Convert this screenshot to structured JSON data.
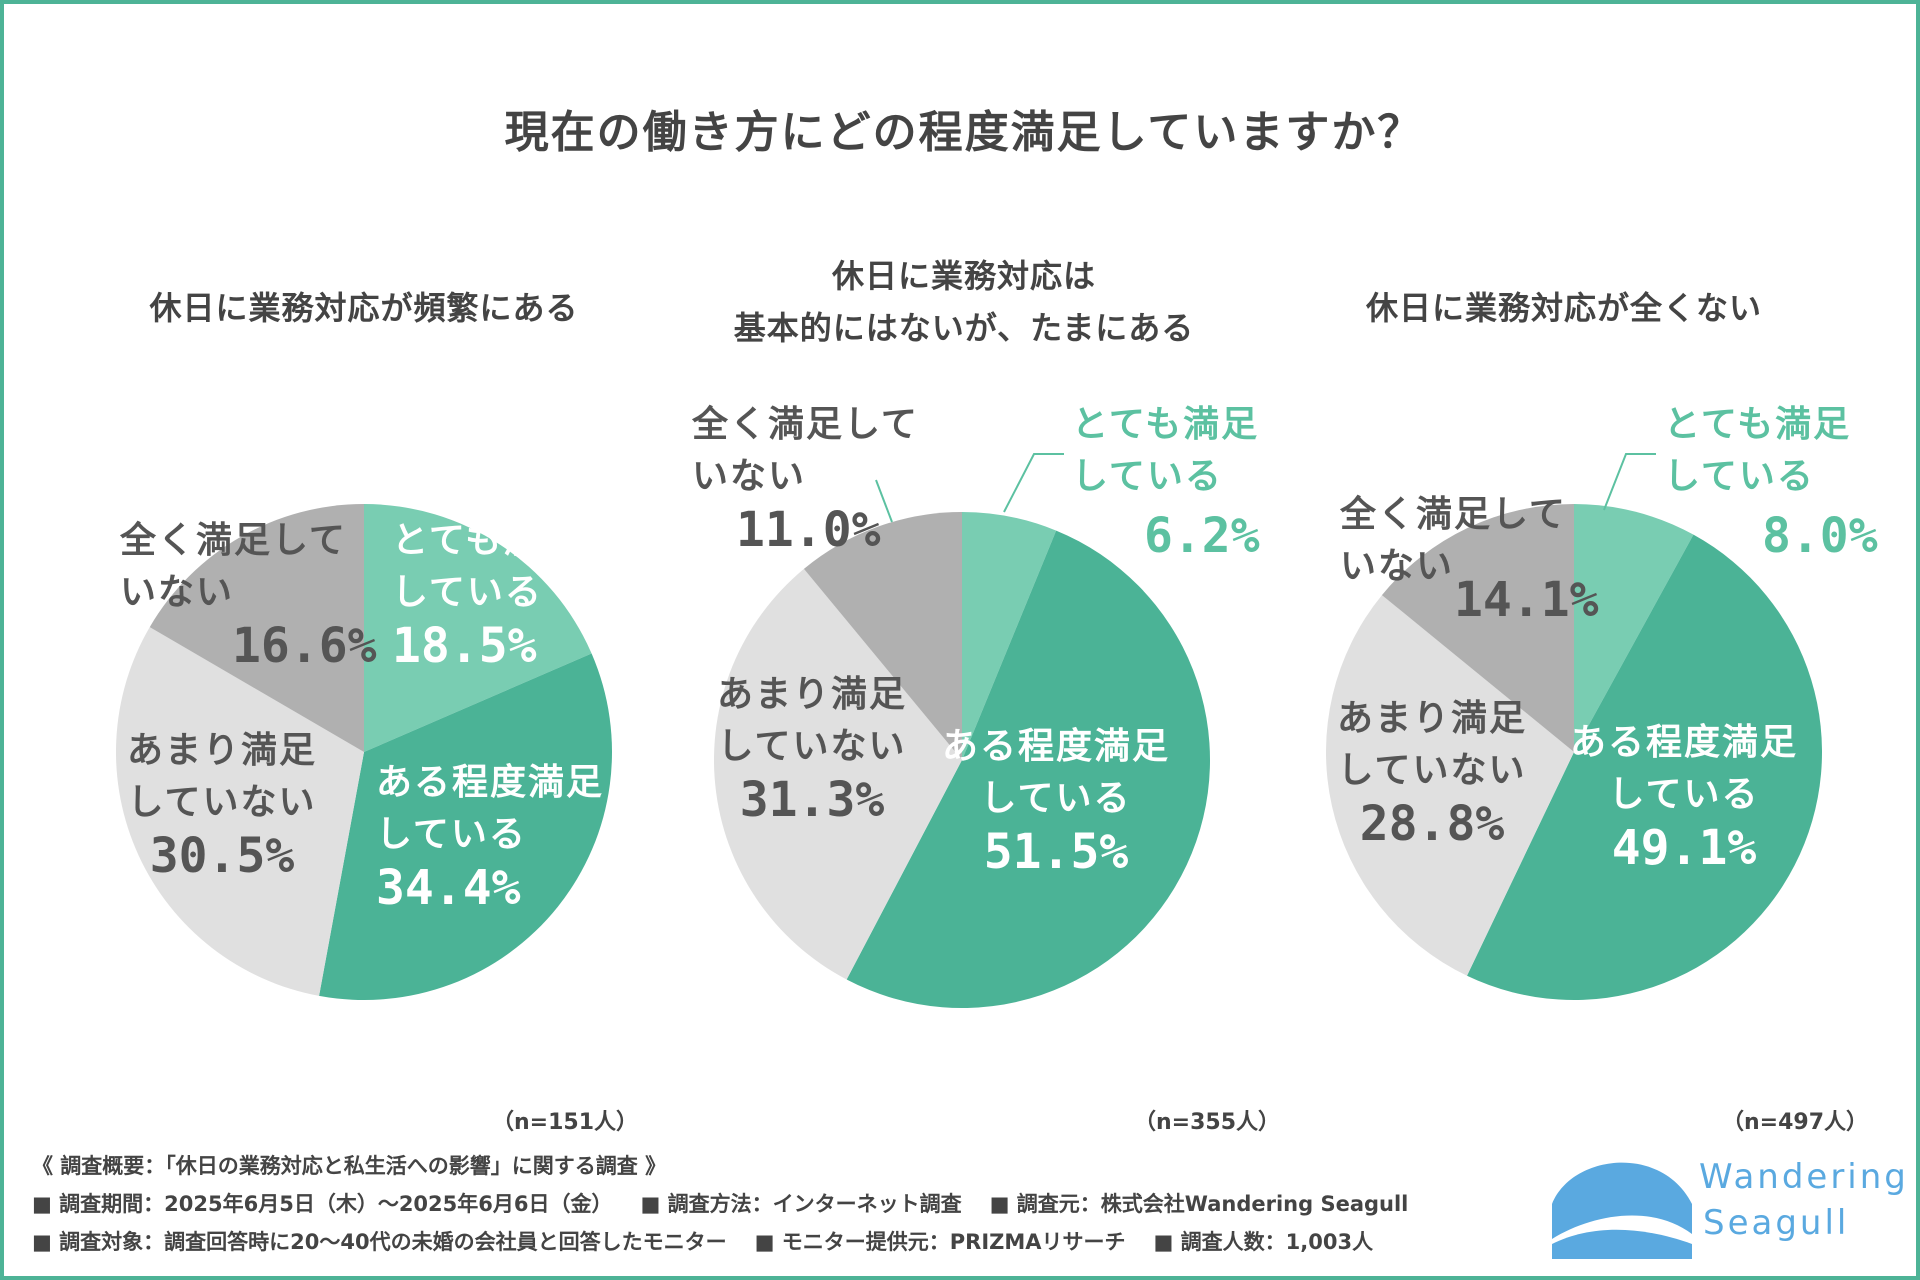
{
  "title": "現在の働き方にどの程度満足していますか？",
  "colors": {
    "frame": "#4db396",
    "very_satisfied": "#79cdb2",
    "somewhat_satisfied": "#4bb396",
    "not_very": "#e0e0e0",
    "not_at_all": "#b0b0b0",
    "dark_text": "#555555",
    "logo": "#5aa9e0"
  },
  "chart_data": [
    {
      "type": "pie",
      "title": "休日に業務対応が頻繁にある",
      "title_lines": [
        "休日に業務対応が頻繁にある"
      ],
      "n": "（n=151人）",
      "slices": [
        {
          "label": "とても満足している",
          "label_lines": [
            "とても満足",
            "している"
          ],
          "value": 18.5,
          "value_text": "18.5%",
          "color": "#79cdb2"
        },
        {
          "label": "ある程度満足している",
          "label_lines": [
            "ある程度満足",
            "している"
          ],
          "value": 34.4,
          "value_text": "34.4%",
          "color": "#4bb396"
        },
        {
          "label": "あまり満足していない",
          "label_lines": [
            "あまり満足",
            "していない"
          ],
          "value": 30.5,
          "value_text": "30.5%",
          "color": "#e0e0e0"
        },
        {
          "label": "全く満足していない",
          "label_lines": [
            "全く満足して",
            "いない"
          ],
          "value": 16.6,
          "value_text": "16.6%",
          "color": "#b0b0b0"
        }
      ]
    },
    {
      "type": "pie",
      "title": "休日に業務対応は基本的にはないが、たまにある",
      "title_lines": [
        "休日に業務対応は",
        "基本的にはないが、たまにある"
      ],
      "n": "（n=355人）",
      "slices": [
        {
          "label": "とても満足している",
          "label_lines": [
            "とても満足",
            "している"
          ],
          "value": 6.2,
          "value_text": "6.2%",
          "color": "#79cdb2"
        },
        {
          "label": "ある程度満足している",
          "label_lines": [
            "ある程度満足",
            "している"
          ],
          "value": 51.5,
          "value_text": "51.5%",
          "color": "#4bb396"
        },
        {
          "label": "あまり満足していない",
          "label_lines": [
            "あまり満足",
            "していない"
          ],
          "value": 31.3,
          "value_text": "31.3%",
          "color": "#e0e0e0"
        },
        {
          "label": "全く満足していない",
          "label_lines": [
            "全く満足して",
            "いない"
          ],
          "value": 11.0,
          "value_text": "11.0%",
          "color": "#b0b0b0"
        }
      ]
    },
    {
      "type": "pie",
      "title": "休日に業務対応が全くない",
      "title_lines": [
        "休日に業務対応が全くない"
      ],
      "n": "（n=497人）",
      "slices": [
        {
          "label": "とても満足している",
          "label_lines": [
            "とても満足",
            "している"
          ],
          "value": 8.0,
          "value_text": "8.0%",
          "color": "#79cdb2"
        },
        {
          "label": "ある程度満足している",
          "label_lines": [
            "ある程度満足",
            "している"
          ],
          "value": 49.1,
          "value_text": "49.1%",
          "color": "#4bb396"
        },
        {
          "label": "あまり満足していない",
          "label_lines": [
            "あまり満足",
            "していない"
          ],
          "value": 28.8,
          "value_text": "28.8%",
          "color": "#e0e0e0"
        },
        {
          "label": "全く満足していない",
          "label_lines": [
            "全く満足して",
            "いない"
          ],
          "value": 14.1,
          "value_text": "14.1%",
          "color": "#b0b0b0"
        }
      ]
    }
  ],
  "footer": {
    "summary": "《 調査概要：「休日の業務対応と私生活への影響」に関する調査 》",
    "period": "■ 調査期間：2025年6月5日（木）～2025年6月6日（金）",
    "method": "■ 調査方法：インターネット調査",
    "source": "■ 調査元：株式会社Wandering Seagull",
    "target": "■ 調査対象：調査回答時に20～40代の未婚の会社員と回答したモニター",
    "provider": "■ モニター提供元：PRIZMAリサーチ",
    "count": "■ 調査人数：1,003人"
  },
  "logo": {
    "line1": "Wandering",
    "line2": "Seagull"
  }
}
